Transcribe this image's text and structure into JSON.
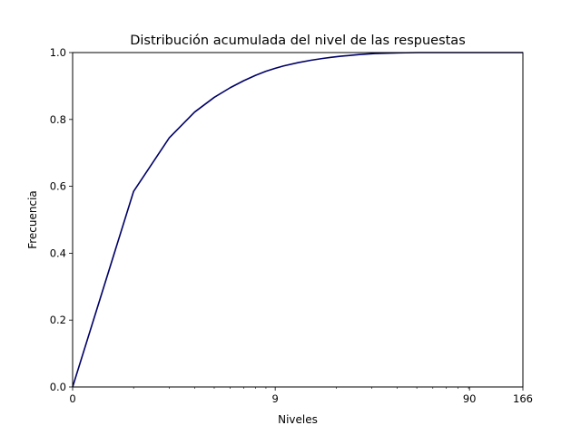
{
  "chart_data": {
    "type": "line",
    "title": "Distribución acumulada del nivel de las respuestas",
    "xlabel": "Niveles",
    "ylabel": "Frecuencia",
    "xscale": "log1p",
    "xlim": [
      0,
      166
    ],
    "ylim": [
      0,
      1
    ],
    "xticks": [
      {
        "value": 0,
        "label": "0"
      },
      {
        "value": 9,
        "label": "9"
      },
      {
        "value": 90,
        "label": "90"
      },
      {
        "value": 166,
        "label": "166"
      }
    ],
    "x_minor_ticks": [
      1,
      2,
      3,
      4,
      5,
      6,
      7,
      8,
      19,
      29,
      39,
      49,
      59,
      69,
      79,
      89
    ],
    "yticks": [
      {
        "value": 0.0,
        "label": "0.0"
      },
      {
        "value": 0.2,
        "label": "0.2"
      },
      {
        "value": 0.4,
        "label": "0.4"
      },
      {
        "value": 0.6,
        "label": "0.6"
      },
      {
        "value": 0.8,
        "label": "0.8"
      },
      {
        "value": 1.0,
        "label": "1.0"
      }
    ],
    "grid": false,
    "series": [
      {
        "color": "#000066",
        "x": [
          0,
          1,
          2,
          3,
          4,
          5,
          6,
          7,
          8,
          9,
          10,
          12,
          14,
          16,
          18,
          20,
          25,
          30,
          40,
          50,
          60,
          90,
          166
        ],
        "y": [
          0.0,
          0.585,
          0.745,
          0.822,
          0.866,
          0.895,
          0.916,
          0.932,
          0.944,
          0.953,
          0.96,
          0.97,
          0.977,
          0.982,
          0.986,
          0.989,
          0.994,
          0.997,
          0.999,
          1.0,
          1.0,
          1.0,
          1.0
        ]
      }
    ]
  }
}
